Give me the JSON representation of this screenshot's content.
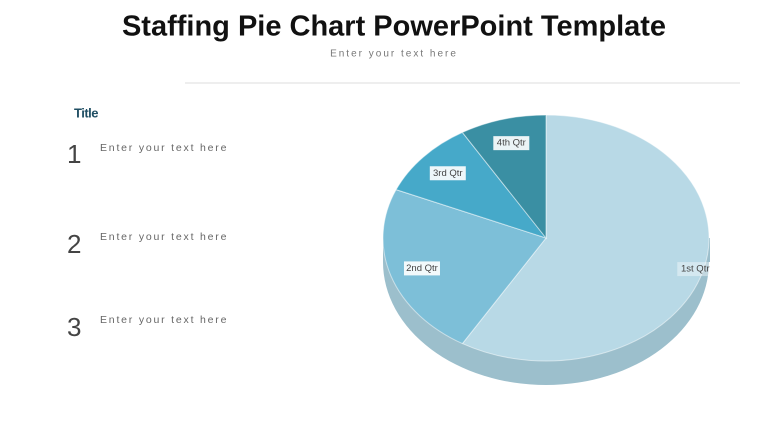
{
  "header": {
    "title": "Staffing Pie Chart PowerPoint Template",
    "subtitle": "Enter your text here"
  },
  "sidebar": {
    "heading": "Title",
    "items": [
      {
        "number": "1",
        "text": "Enter your text here"
      },
      {
        "number": "2",
        "text": "Enter your text here"
      },
      {
        "number": "3",
        "text": "Enter your text here"
      }
    ]
  },
  "chart_data": {
    "type": "pie",
    "categories": [
      "1st Qtr",
      "2nd Qtr",
      "3rd Qtr",
      "4th Qtr"
    ],
    "values": [
      8.2,
      3.2,
      1.4,
      1.2
    ],
    "colors": [
      "#b8d9e6",
      "#7dbfd8",
      "#46a9c9",
      "#3a8fa3"
    ]
  }
}
